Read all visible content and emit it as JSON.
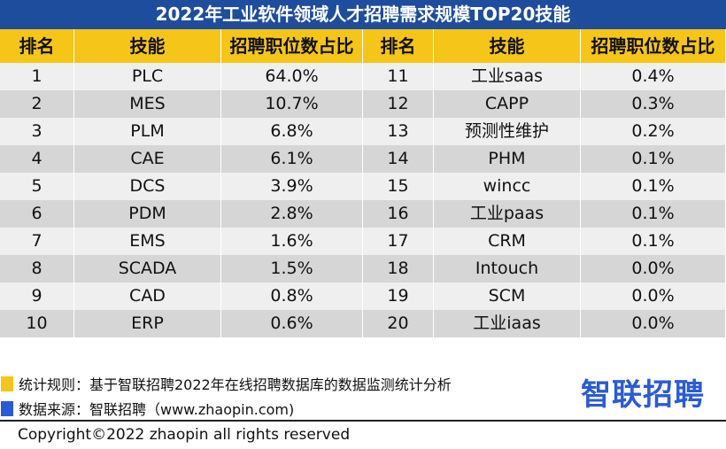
{
  "title": "2022年工业软件领域人才招聘需求规模TOP20技能",
  "table": {
    "headers": [
      "排名",
      "技能",
      "招聘职位数占比",
      "排名",
      "技能",
      "招聘职位数占比"
    ],
    "rows": [
      {
        "rank_left": "1",
        "skill_left": "PLC",
        "share_left": "64.0%",
        "rank_right": "11",
        "skill_right": "工业saas",
        "share_right": "0.4%"
      },
      {
        "rank_left": "2",
        "skill_left": "MES",
        "share_left": "10.7%",
        "rank_right": "12",
        "skill_right": "CAPP",
        "share_right": "0.3%"
      },
      {
        "rank_left": "3",
        "skill_left": "PLM",
        "share_left": "6.8%",
        "rank_right": "13",
        "skill_right": "预测性维护",
        "share_right": "0.2%"
      },
      {
        "rank_left": "4",
        "skill_left": "CAE",
        "share_left": "6.1%",
        "rank_right": "14",
        "skill_right": "PHM",
        "share_right": "0.1%"
      },
      {
        "rank_left": "5",
        "skill_left": "DCS",
        "share_left": "3.9%",
        "rank_right": "15",
        "skill_right": "wincc",
        "share_right": "0.1%"
      },
      {
        "rank_left": "6",
        "skill_left": "PDM",
        "share_left": "2.8%",
        "rank_right": "16",
        "skill_right": "工业paas",
        "share_right": "0.1%"
      },
      {
        "rank_left": "7",
        "skill_left": "EMS",
        "share_left": "1.6%",
        "rank_right": "17",
        "skill_right": "CRM",
        "share_right": "0.1%"
      },
      {
        "rank_left": "8",
        "skill_left": "SCADA",
        "share_left": "1.5%",
        "rank_right": "18",
        "skill_right": "Intouch",
        "share_right": "0.0%"
      },
      {
        "rank_left": "9",
        "skill_left": "CAD",
        "share_left": "0.8%",
        "rank_right": "19",
        "skill_right": "SCM",
        "share_right": "0.0%"
      },
      {
        "rank_left": "10",
        "skill_left": "ERP",
        "share_left": "0.6%",
        "rank_right": "20",
        "skill_right": "工业iaas",
        "share_right": "0.0%"
      }
    ]
  },
  "notes": {
    "rule": "统计规则：基于智联招聘2022年在线招聘数据库的数据监测统计分析",
    "source": "数据来源：智联招聘（www.zhaopin.com)"
  },
  "logo": "智联招聘",
  "copyright": "Copyright©2022 zhaopin all rights reserved",
  "colors": {
    "title_bg": "#1f4d9e",
    "header_bg": "#f5c518",
    "row_light": "#efefef",
    "row_dark": "#d6d6d6",
    "accent_blue": "#2a5bd7"
  }
}
